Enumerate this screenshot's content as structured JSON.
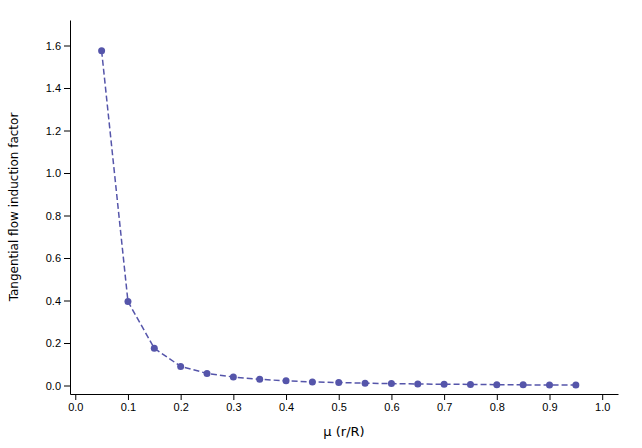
{
  "chart_data": {
    "type": "line",
    "x": [
      0.05,
      0.1,
      0.15,
      0.2,
      0.25,
      0.3,
      0.35,
      0.4,
      0.45,
      0.5,
      0.55,
      0.6,
      0.65,
      0.7,
      0.75,
      0.8,
      0.85,
      0.9,
      0.95
    ],
    "values": [
      1.575,
      0.395,
      0.175,
      0.09,
      0.057,
      0.04,
      0.029,
      0.022,
      0.017,
      0.014,
      0.011,
      0.009,
      0.007,
      0.006,
      0.005,
      0.004,
      0.003,
      0.002,
      0.002
    ],
    "color": "#5555aa",
    "marker": "circle",
    "line_style": "dashed",
    "xlabel": "μ (r/R)",
    "ylabel": "Tangential flow induction factor",
    "xlim": [
      -0.01,
      1.03
    ],
    "ylim": [
      -0.04,
      1.72
    ],
    "xticks": [
      {
        "value": 0,
        "label": "0.0"
      },
      0.1,
      0.2,
      0.3,
      0.4,
      0.5,
      0.6,
      0.7,
      0.8,
      0.9,
      {
        "value": 1,
        "label": "1.0"
      }
    ],
    "yticks": [
      {
        "value": 0,
        "label": "0.0"
      },
      0.2,
      0.4,
      0.6,
      0.8,
      {
        "value": 1,
        "label": "1.0"
      },
      1.2,
      1.4,
      1.6
    ],
    "grid": false
  }
}
